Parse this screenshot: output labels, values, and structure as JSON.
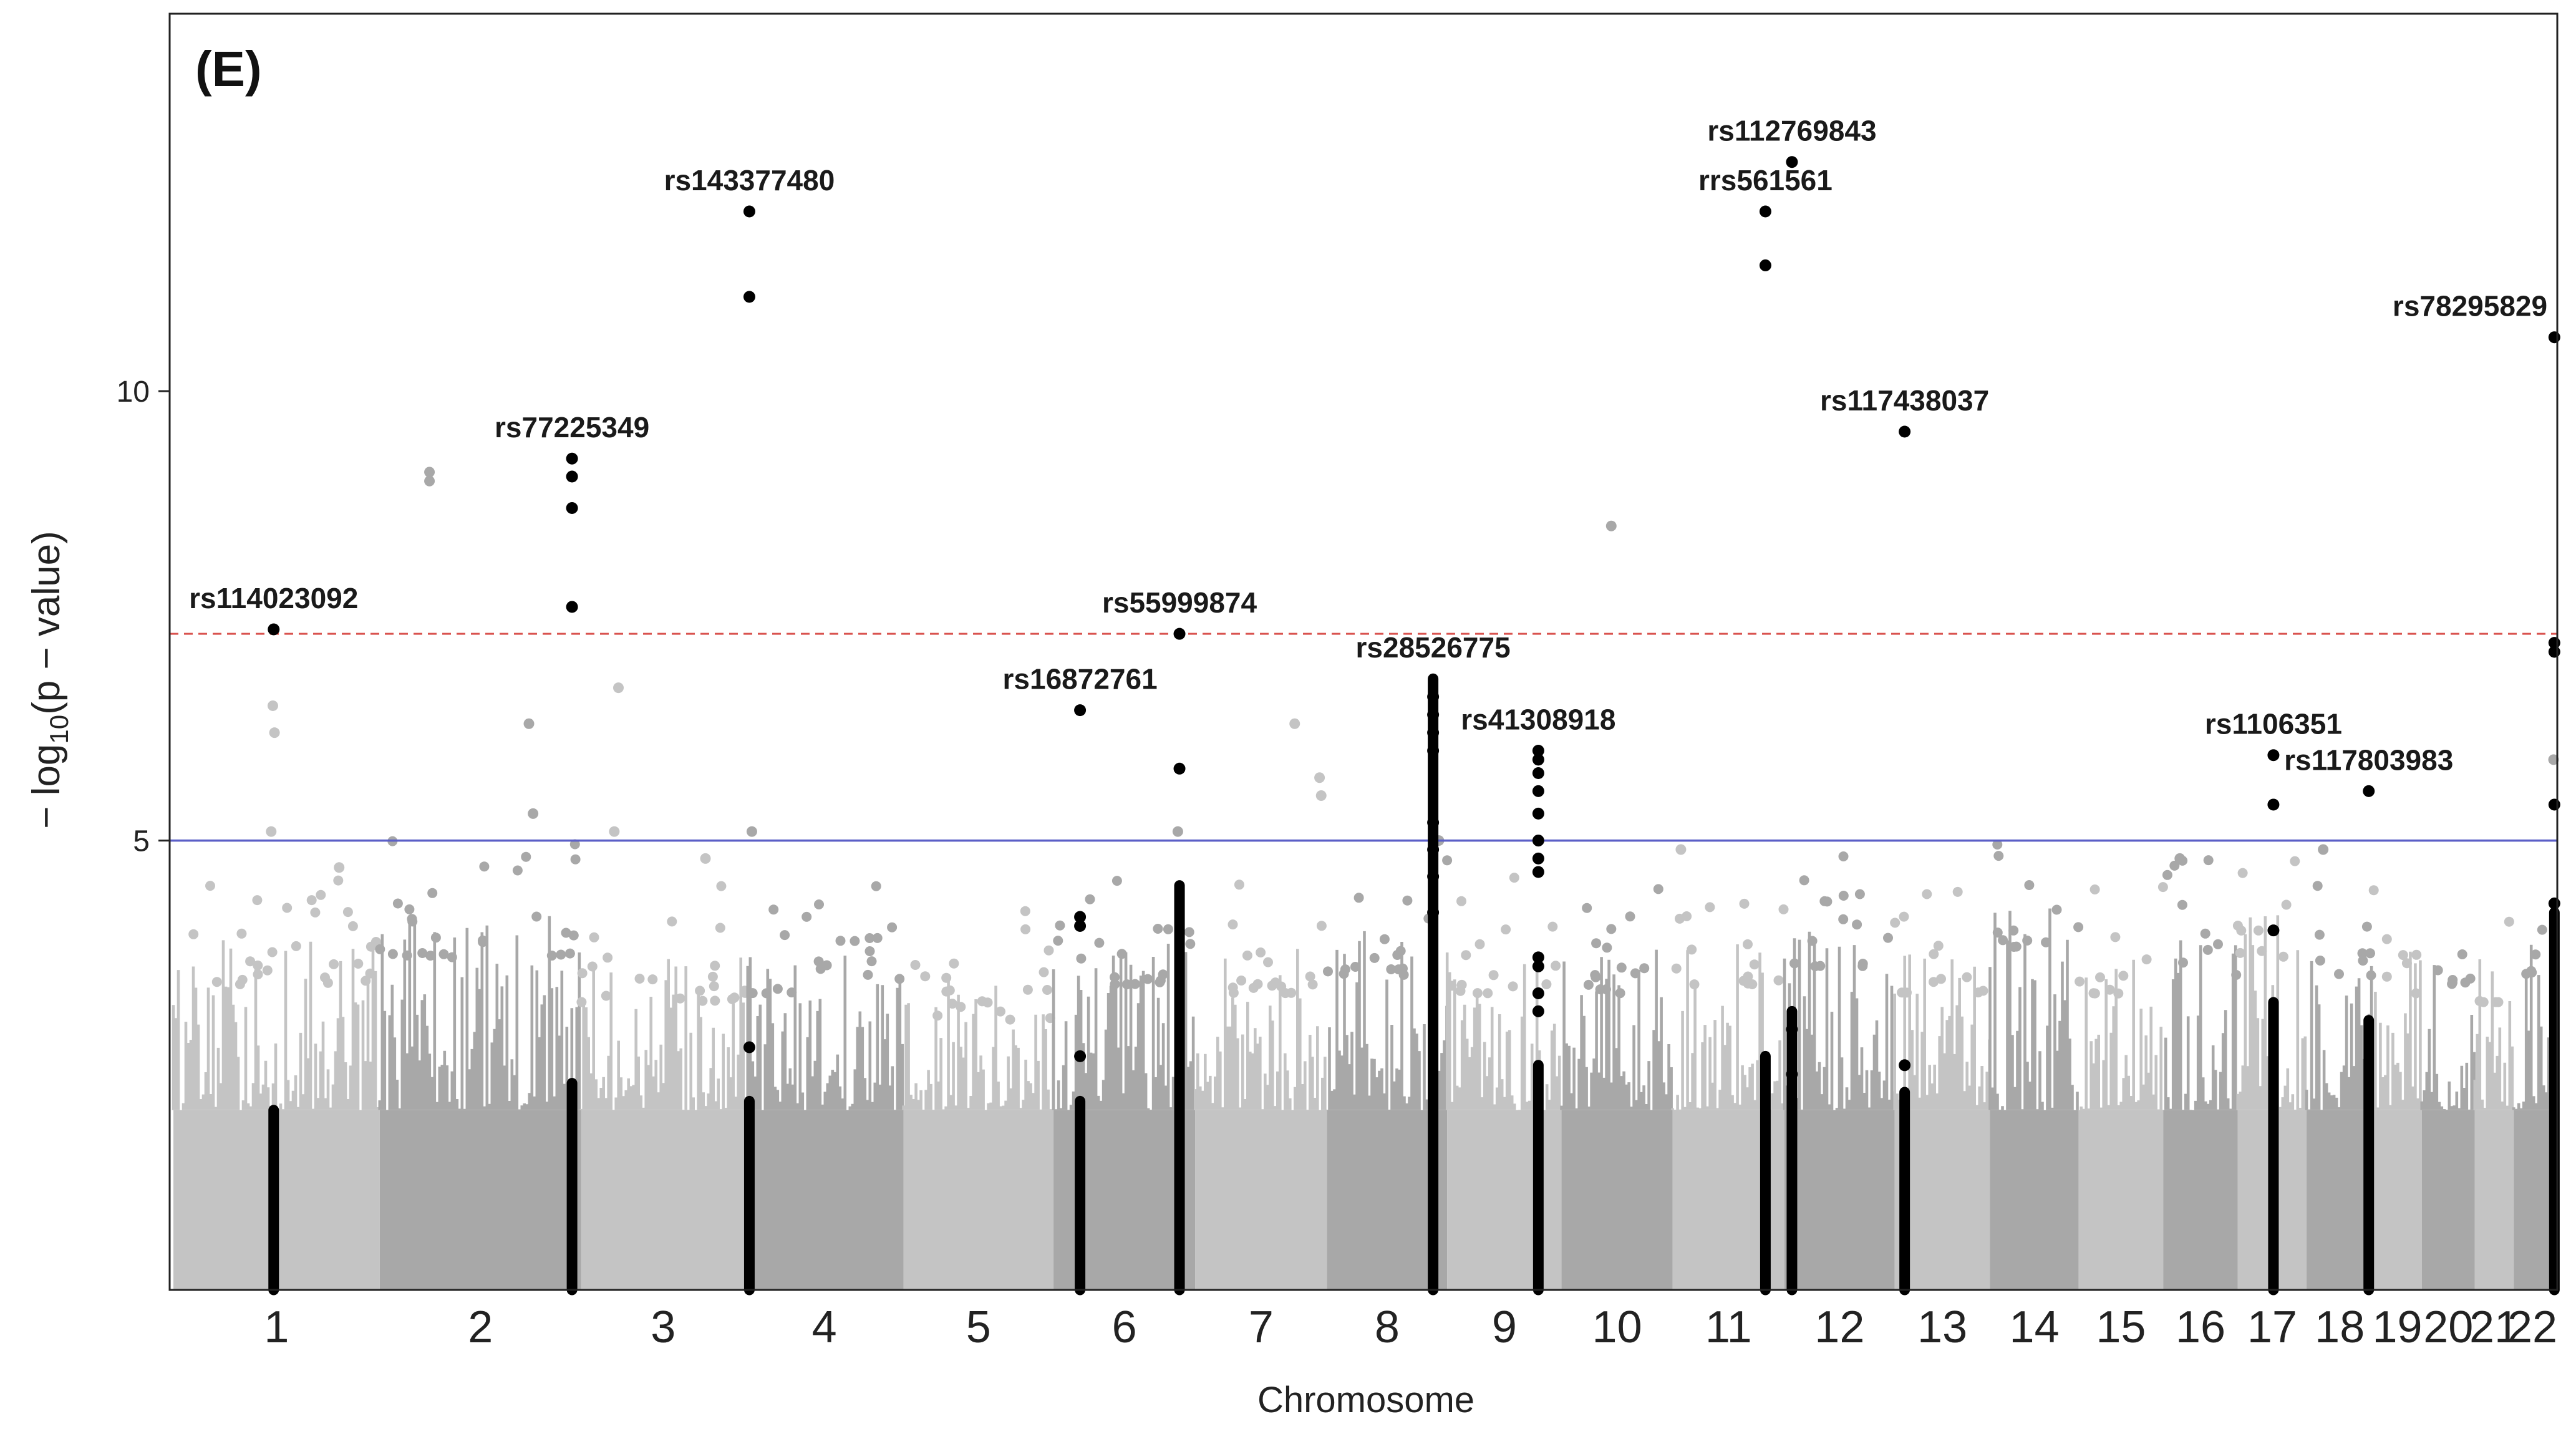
{
  "chart_data": {
    "type": "scatter",
    "subtype": "manhattan",
    "panel_label": "(E)",
    "title": "",
    "xlabel": "Chromosome",
    "ylabel_prefix": "− log",
    "ylabel_sub": "10",
    "ylabel_suffix": "(p − value)",
    "ylim": [
      0,
      14.2
    ],
    "yticks": [
      5,
      10
    ],
    "genomewide_threshold": 7.3,
    "suggestive_threshold": 5.0,
    "colors": {
      "odd": "#c4c4c4",
      "even": "#a8a8a8",
      "highlight": "#000000",
      "genomewide_line": "#d9534f",
      "suggestive_line": "#5b5fc7",
      "frame": "#222222"
    },
    "chromosomes": [
      {
        "label": "1",
        "size": 249,
        "level": 3.7
      },
      {
        "label": "2",
        "size": 243,
        "level": 4.0
      },
      {
        "label": "3",
        "size": 198,
        "level": 3.5
      },
      {
        "label": "4",
        "size": 191,
        "level": 3.6
      },
      {
        "label": "5",
        "size": 181,
        "level": 3.3
      },
      {
        "label": "6",
        "size": 171,
        "level": 3.7
      },
      {
        "label": "7",
        "size": 159,
        "level": 3.6
      },
      {
        "label": "8",
        "size": 145,
        "level": 3.8
      },
      {
        "label": "9",
        "size": 138,
        "level": 3.6
      },
      {
        "label": "10",
        "size": 134,
        "level": 3.6
      },
      {
        "label": "11",
        "size": 135,
        "level": 3.7
      },
      {
        "label": "12",
        "size": 133,
        "level": 3.9
      },
      {
        "label": "13",
        "size": 115,
        "level": 3.6
      },
      {
        "label": "14",
        "size": 107,
        "level": 4.1
      },
      {
        "label": "15",
        "size": 102,
        "level": 3.5
      },
      {
        "label": "16",
        "size": 90,
        "level": 3.8
      },
      {
        "label": "17",
        "size": 83,
        "level": 4.0
      },
      {
        "label": "18",
        "size": 80,
        "level": 3.8
      },
      {
        "label": "19",
        "size": 59,
        "level": 3.6
      },
      {
        "label": "20",
        "size": 64,
        "level": 3.7
      },
      {
        "label": "21",
        "size": 47,
        "level": 3.5
      },
      {
        "label": "22",
        "size": 51,
        "level": 3.8
      }
    ],
    "scattered_points": [
      {
        "chr": "1",
        "pos": 120,
        "y": 6.5
      },
      {
        "chr": "1",
        "pos": 122,
        "y": 6.2
      },
      {
        "chr": "1",
        "pos": 118,
        "y": 5.1
      },
      {
        "chr": "1",
        "pos": 200,
        "y": 4.7
      },
      {
        "chr": "2",
        "pos": 60,
        "y": 9.1
      },
      {
        "chr": "2",
        "pos": 60,
        "y": 9.0
      },
      {
        "chr": "2",
        "pos": 180,
        "y": 6.3
      },
      {
        "chr": "2",
        "pos": 185,
        "y": 5.3
      },
      {
        "chr": "3",
        "pos": 45,
        "y": 6.7
      },
      {
        "chr": "3",
        "pos": 40,
        "y": 5.1
      },
      {
        "chr": "3",
        "pos": 150,
        "y": 4.8
      },
      {
        "chr": "4",
        "pos": 8,
        "y": 5.1
      },
      {
        "chr": "6",
        "pos": 150,
        "y": 5.1
      },
      {
        "chr": "7",
        "pos": 120,
        "y": 6.3
      },
      {
        "chr": "7",
        "pos": 150,
        "y": 5.7
      },
      {
        "chr": "7",
        "pos": 152,
        "y": 5.5
      },
      {
        "chr": "8",
        "pos": 135,
        "y": 5.0
      },
      {
        "chr": "10",
        "pos": 60,
        "y": 8.5
      },
      {
        "chr": "11",
        "pos": 10,
        "y": 4.9
      },
      {
        "chr": "16",
        "pos": 20,
        "y": 4.8
      },
      {
        "chr": "18",
        "pos": 20,
        "y": 4.9
      },
      {
        "chr": "22",
        "pos": 48,
        "y": 5.9
      }
    ],
    "highlight_columns": [
      {
        "chr": "1",
        "pos": 121,
        "top": 2.0,
        "points": [
          7.35
        ]
      },
      {
        "chr": "2",
        "pos": 232,
        "top": 2.3,
        "points": [
          9.25,
          9.05,
          8.7,
          7.6
        ]
      },
      {
        "chr": "4",
        "pos": 5,
        "top": 2.1,
        "points": [
          12.0,
          11.05,
          2.7
        ]
      },
      {
        "chr": "6",
        "pos": 32,
        "top": 2.1,
        "points": [
          6.45,
          4.15,
          4.05,
          2.6
        ]
      },
      {
        "chr": "6",
        "pos": 152,
        "top": 4.5,
        "points": [
          7.3,
          5.8
        ]
      },
      {
        "chr": "8",
        "pos": 128,
        "top": 6.8,
        "points": [
          6.6,
          6.4,
          6.2,
          6.0,
          5.2,
          4.9,
          4.6,
          4.2
        ]
      },
      {
        "chr": "9",
        "pos": 110,
        "top": 2.5,
        "points": [
          6.0,
          5.9,
          5.75,
          5.55,
          5.3,
          5.0,
          4.8,
          4.65,
          3.7,
          3.6,
          3.3,
          3.1
        ]
      },
      {
        "chr": "11",
        "pos": 112,
        "top": 2.6,
        "points": [
          12.0,
          11.4
        ]
      },
      {
        "chr": "12",
        "pos": 9,
        "top": 3.1,
        "points": [
          12.55,
          2.9,
          2.4
        ]
      },
      {
        "chr": "13",
        "pos": 12,
        "top": 2.2,
        "points": [
          9.55,
          2.5
        ]
      },
      {
        "chr": "17",
        "pos": 43,
        "top": 3.2,
        "points": [
          5.95,
          5.4,
          4.0
        ]
      },
      {
        "chr": "18",
        "pos": 75,
        "top": 3.0,
        "points": [
          5.55
        ]
      },
      {
        "chr": "22",
        "pos": 49,
        "top": 4.2,
        "points": [
          10.6,
          7.2,
          7.1,
          5.4,
          4.3
        ]
      }
    ],
    "annotations": [
      {
        "label": "rs114023092",
        "chr": "1",
        "pos": 121,
        "y": 7.35
      },
      {
        "label": "rs77225349",
        "chr": "2",
        "pos": 232,
        "y": 9.25
      },
      {
        "label": "rs143377480",
        "chr": "4",
        "pos": 5,
        "y": 12.0
      },
      {
        "label": "rs16872761",
        "chr": "6",
        "pos": 32,
        "y": 6.45
      },
      {
        "label": "rs55999874",
        "chr": "6",
        "pos": 152,
        "y": 7.3
      },
      {
        "label": "rs28526775",
        "chr": "8",
        "pos": 128,
        "y": 6.8
      },
      {
        "label": "rs41308918",
        "chr": "9",
        "pos": 110,
        "y": 6.0
      },
      {
        "label": "rrs561561",
        "chr": "11",
        "pos": 112,
        "y": 12.0
      },
      {
        "label": "rs112769843",
        "chr": "12",
        "pos": 9,
        "y": 12.55
      },
      {
        "label": "rs117438037",
        "chr": "13",
        "pos": 12,
        "y": 9.55
      },
      {
        "label": "rs1106351",
        "chr": "17",
        "pos": 43,
        "y": 5.95
      },
      {
        "label": "rs117803983",
        "chr": "18",
        "pos": 75,
        "y": 5.55
      },
      {
        "label": "rs78295829",
        "chr": "22",
        "pos": 49,
        "y": 10.6
      }
    ]
  }
}
